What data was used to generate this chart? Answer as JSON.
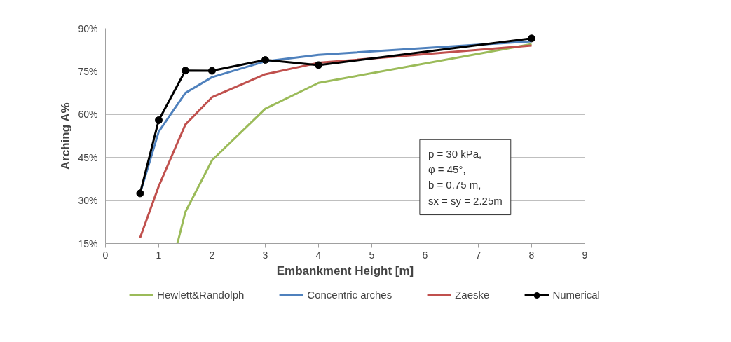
{
  "chart_data": {
    "type": "line",
    "xlabel": "Embankment Height [m]",
    "ylabel": "Arching A%",
    "xlim": [
      0,
      9
    ],
    "xticks": [
      0,
      1,
      2,
      3,
      4,
      5,
      6,
      7,
      8,
      9
    ],
    "ylim": [
      15,
      90
    ],
    "yticks": [
      {
        "value": 15,
        "label": "15%"
      },
      {
        "value": 30,
        "label": "30%"
      },
      {
        "value": 45,
        "label": "45%"
      },
      {
        "value": 60,
        "label": "60%"
      },
      {
        "value": 75,
        "label": "75%"
      },
      {
        "value": 90,
        "label": "90%"
      }
    ],
    "grid": "y",
    "legend": "bottom",
    "line_style": "solid",
    "series": [
      {
        "name": "Hewlett&Randolph",
        "color": "#9bbb59",
        "marker": "none",
        "x": [
          1.35,
          1.5,
          2,
          3,
          4,
          8
        ],
        "values": [
          15,
          26,
          44,
          62,
          71,
          84.5
        ]
      },
      {
        "name": "Concentric arches",
        "color": "#4f81bd",
        "marker": "none",
        "x": [
          0.65,
          1,
          1.5,
          2,
          3,
          4,
          8
        ],
        "values": [
          32.5,
          54,
          67.5,
          73,
          78.5,
          80.8,
          85.5
        ]
      },
      {
        "name": "Zaeske",
        "color": "#c0504d",
        "marker": "none",
        "x": [
          0.65,
          1,
          1.5,
          2,
          3,
          4,
          8
        ],
        "values": [
          17,
          35,
          56.5,
          66,
          74,
          78,
          84
        ]
      },
      {
        "name": "Numerical",
        "color": "#000000",
        "marker": "circle",
        "x": [
          0.65,
          1,
          1.5,
          2,
          3,
          4,
          8
        ],
        "values": [
          32.5,
          58,
          75.3,
          75.2,
          79,
          77.2,
          86.5
        ]
      }
    ],
    "annotations": [
      "p = 30 kPa,\nφ = 45°,\nb = 0.75 m,\nsx = sy = 2.25m"
    ]
  }
}
